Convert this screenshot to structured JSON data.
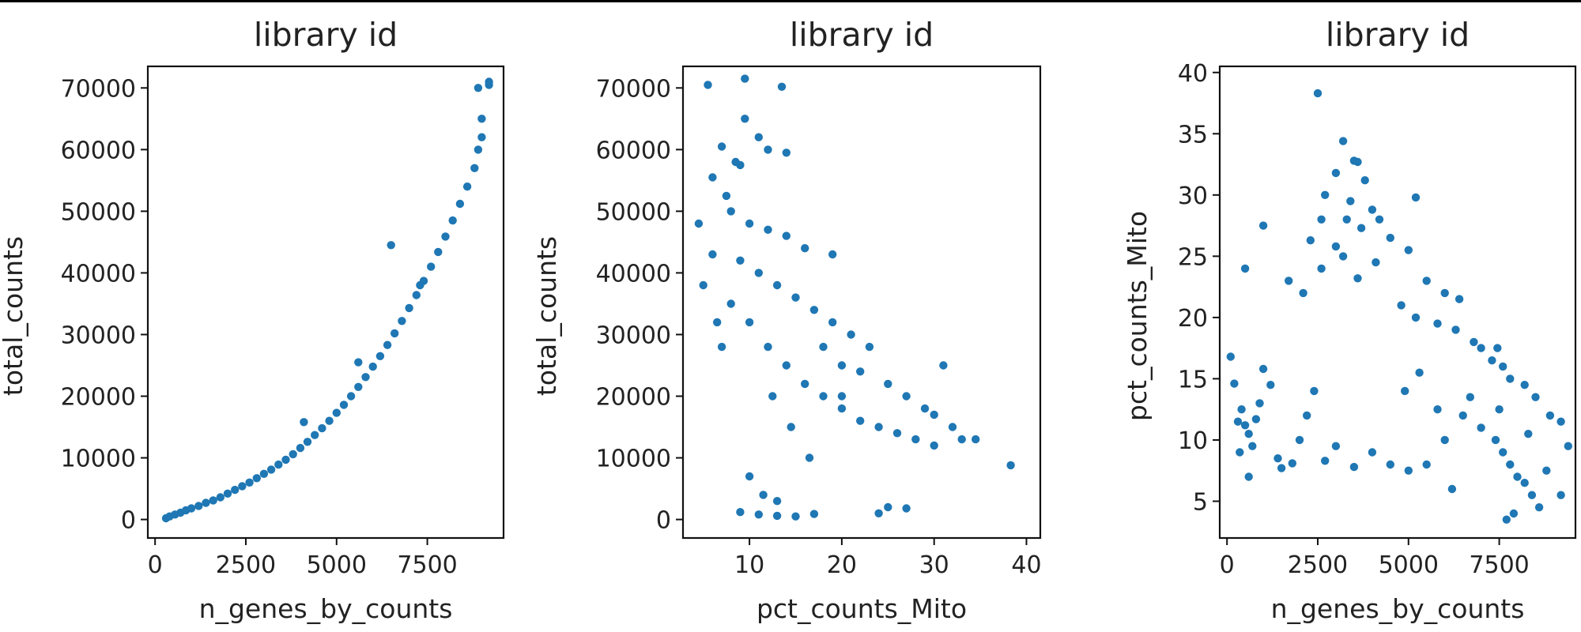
{
  "chart_data": [
    {
      "type": "scatter",
      "title": "library id",
      "xlabel": "n_genes_by_counts",
      "ylabel": "total_counts",
      "xlim": [
        -200,
        9600
      ],
      "ylim": [
        -3000,
        73500
      ],
      "xticks": [
        0,
        2500,
        5000,
        7500
      ],
      "xtick_labels": [
        "0",
        "2500",
        "5000",
        "7500"
      ],
      "yticks": [
        0,
        10000,
        20000,
        30000,
        40000,
        50000,
        60000,
        70000
      ],
      "ytick_labels": [
        "0",
        "10000",
        "20000",
        "30000",
        "40000",
        "50000",
        "60000",
        "70000"
      ],
      "color": "#1f77b4",
      "grid": false,
      "points": [
        [
          300,
          200
        ],
        [
          400,
          500
        ],
        [
          550,
          800
        ],
        [
          700,
          1100
        ],
        [
          850,
          1500
        ],
        [
          1000,
          1800
        ],
        [
          1200,
          2200
        ],
        [
          1400,
          2700
        ],
        [
          1600,
          3100
        ],
        [
          1800,
          3600
        ],
        [
          2000,
          4200
        ],
        [
          2200,
          4800
        ],
        [
          2400,
          5400
        ],
        [
          2600,
          6000
        ],
        [
          2800,
          6700
        ],
        [
          3000,
          7400
        ],
        [
          3200,
          8100
        ],
        [
          3400,
          8900
        ],
        [
          3600,
          9700
        ],
        [
          3800,
          10600
        ],
        [
          4000,
          11600
        ],
        [
          4200,
          12600
        ],
        [
          4400,
          13700
        ],
        [
          4600,
          14800
        ],
        [
          4800,
          16000
        ],
        [
          5000,
          17300
        ],
        [
          5200,
          18600
        ],
        [
          5400,
          20000
        ],
        [
          5600,
          21500
        ],
        [
          5800,
          23100
        ],
        [
          6000,
          24800
        ],
        [
          6200,
          26500
        ],
        [
          6400,
          28300
        ],
        [
          6600,
          30200
        ],
        [
          6800,
          32200
        ],
        [
          7000,
          34300
        ],
        [
          7200,
          36400
        ],
        [
          7400,
          38700
        ],
        [
          7600,
          41000
        ],
        [
          7800,
          43400
        ],
        [
          8000,
          45900
        ],
        [
          8200,
          48500
        ],
        [
          8400,
          51200
        ],
        [
          8600,
          54000
        ],
        [
          8800,
          57000
        ],
        [
          8900,
          60000
        ],
        [
          9000,
          62000
        ],
        [
          9000,
          65000
        ],
        [
          8900,
          70000
        ],
        [
          9200,
          70500
        ],
        [
          9200,
          71000
        ],
        [
          6500,
          44500
        ],
        [
          5600,
          25500
        ],
        [
          4100,
          15800
        ],
        [
          7300,
          38000
        ]
      ]
    },
    {
      "type": "scatter",
      "title": "library id",
      "xlabel": "pct_counts_Mito",
      "ylabel": "total_counts",
      "xlim": [
        2.8,
        41.5
      ],
      "ylim": [
        -3000,
        73500
      ],
      "xticks": [
        10,
        20,
        30,
        40
      ],
      "xtick_labels": [
        "10",
        "20",
        "30",
        "40"
      ],
      "yticks": [
        0,
        10000,
        20000,
        30000,
        40000,
        50000,
        60000,
        70000
      ],
      "ytick_labels": [
        "0",
        "10000",
        "20000",
        "30000",
        "40000",
        "50000",
        "60000",
        "70000"
      ],
      "color": "#1f77b4",
      "grid": false,
      "points": [
        [
          5.5,
          70500
        ],
        [
          9.5,
          71500
        ],
        [
          13.5,
          70200
        ],
        [
          9.5,
          65000
        ],
        [
          11,
          62000
        ],
        [
          12,
          60000
        ],
        [
          14,
          59500
        ],
        [
          7,
          60500
        ],
        [
          8.5,
          58000
        ],
        [
          9,
          57500
        ],
        [
          6,
          55500
        ],
        [
          7.5,
          52500
        ],
        [
          8,
          50000
        ],
        [
          10,
          48000
        ],
        [
          12,
          47000
        ],
        [
          14,
          46000
        ],
        [
          16,
          44000
        ],
        [
          9,
          42000
        ],
        [
          11,
          40000
        ],
        [
          13,
          38000
        ],
        [
          15,
          36000
        ],
        [
          17,
          34000
        ],
        [
          19,
          32000
        ],
        [
          21,
          30000
        ],
        [
          23,
          28000
        ],
        [
          8,
          35000
        ],
        [
          10,
          32000
        ],
        [
          12,
          28000
        ],
        [
          14,
          25000
        ],
        [
          16,
          22000
        ],
        [
          18,
          20000
        ],
        [
          20,
          18000
        ],
        [
          22,
          16000
        ],
        [
          24,
          15000
        ],
        [
          26,
          14000
        ],
        [
          28,
          13000
        ],
        [
          30,
          12000
        ],
        [
          32,
          15000
        ],
        [
          33,
          13000
        ],
        [
          34.5,
          13000
        ],
        [
          38.3,
          8800
        ],
        [
          25,
          2000
        ],
        [
          24,
          1000
        ],
        [
          27,
          1800
        ],
        [
          9,
          1200
        ],
        [
          11,
          800
        ],
        [
          13,
          600
        ],
        [
          15,
          500
        ],
        [
          17,
          900
        ],
        [
          6,
          43000
        ],
        [
          4.5,
          48000
        ],
        [
          5,
          38000
        ],
        [
          6.5,
          32000
        ],
        [
          7,
          28000
        ],
        [
          12.5,
          20000
        ],
        [
          14.5,
          15000
        ],
        [
          16.5,
          10000
        ],
        [
          10,
          7000
        ],
        [
          11.5,
          4000
        ],
        [
          13,
          3000
        ],
        [
          20,
          25000
        ],
        [
          22,
          24000
        ],
        [
          25,
          22000
        ],
        [
          27,
          20000
        ],
        [
          30,
          17000
        ],
        [
          31,
          25000
        ],
        [
          29,
          18000
        ],
        [
          18,
          28000
        ],
        [
          19,
          43000
        ],
        [
          20,
          20000
        ]
      ]
    },
    {
      "type": "scatter",
      "title": "library id",
      "xlabel": "n_genes_by_counts",
      "ylabel": "pct_counts_Mito",
      "xlim": [
        -200,
        9600
      ],
      "ylim": [
        2,
        40.5
      ],
      "xticks": [
        0,
        2500,
        5000,
        7500
      ],
      "xtick_labels": [
        "0",
        "2500",
        "5000",
        "7500"
      ],
      "yticks": [
        5,
        10,
        15,
        20,
        25,
        30,
        35,
        40
      ],
      "ytick_labels": [
        "5",
        "10",
        "15",
        "20",
        "25",
        "30",
        "35",
        "40"
      ],
      "color": "#1f77b4",
      "grid": false,
      "points": [
        [
          2500,
          38.3
        ],
        [
          3200,
          34.4
        ],
        [
          3500,
          32.8
        ],
        [
          3600,
          32.7
        ],
        [
          3000,
          31.8
        ],
        [
          3800,
          31.2
        ],
        [
          2700,
          30.0
        ],
        [
          5200,
          29.8
        ],
        [
          3400,
          29.5
        ],
        [
          4000,
          28.8
        ],
        [
          3300,
          28.0
        ],
        [
          4200,
          28.0
        ],
        [
          2600,
          28.0
        ],
        [
          1000,
          27.5
        ],
        [
          3700,
          27.3
        ],
        [
          4500,
          26.5
        ],
        [
          2300,
          26.3
        ],
        [
          3000,
          25.8
        ],
        [
          5000,
          25.5
        ],
        [
          3200,
          25.0
        ],
        [
          4100,
          24.5
        ],
        [
          500,
          24.0
        ],
        [
          2600,
          24.0
        ],
        [
          3600,
          23.2
        ],
        [
          1700,
          23.0
        ],
        [
          5500,
          23.0
        ],
        [
          6000,
          22.0
        ],
        [
          2100,
          22.0
        ],
        [
          4800,
          21.0
        ],
        [
          5200,
          20.0
        ],
        [
          5800,
          19.5
        ],
        [
          6300,
          19.0
        ],
        [
          6800,
          18.0
        ],
        [
          7000,
          17.5
        ],
        [
          7300,
          16.5
        ],
        [
          7600,
          16.0
        ],
        [
          7800,
          15.0
        ],
        [
          8200,
          14.5
        ],
        [
          8500,
          13.5
        ],
        [
          8900,
          12.0
        ],
        [
          9200,
          11.5
        ],
        [
          100,
          16.8
        ],
        [
          200,
          14.6
        ],
        [
          300,
          11.5
        ],
        [
          400,
          12.5
        ],
        [
          500,
          11.2
        ],
        [
          600,
          10.5
        ],
        [
          700,
          9.5
        ],
        [
          800,
          11.7
        ],
        [
          900,
          13.0
        ],
        [
          1000,
          15.8
        ],
        [
          1200,
          14.5
        ],
        [
          1400,
          8.5
        ],
        [
          1500,
          7.7
        ],
        [
          1800,
          8.1
        ],
        [
          2000,
          10.0
        ],
        [
          2200,
          12.0
        ],
        [
          2400,
          14.0
        ],
        [
          2700,
          8.3
        ],
        [
          3000,
          9.5
        ],
        [
          3500,
          7.8
        ],
        [
          4000,
          9.0
        ],
        [
          4500,
          8.0
        ],
        [
          5000,
          7.5
        ],
        [
          5500,
          8.0
        ],
        [
          6000,
          10.0
        ],
        [
          6500,
          12.0
        ],
        [
          7000,
          11.0
        ],
        [
          7400,
          10.0
        ],
        [
          7600,
          9.0
        ],
        [
          7800,
          8.0
        ],
        [
          8000,
          7.0
        ],
        [
          8200,
          6.5
        ],
        [
          8400,
          5.5
        ],
        [
          8600,
          4.5
        ],
        [
          9200,
          5.5
        ],
        [
          9400,
          9.5
        ],
        [
          7700,
          3.5
        ],
        [
          7900,
          4.0
        ],
        [
          8800,
          7.5
        ],
        [
          6200,
          6.0
        ],
        [
          5800,
          12.5
        ],
        [
          4900,
          14.0
        ],
        [
          5300,
          15.5
        ],
        [
          6700,
          13.5
        ],
        [
          7500,
          12.5
        ],
        [
          8300,
          10.5
        ],
        [
          350,
          9.0
        ],
        [
          600,
          7.0
        ],
        [
          7450,
          17.5
        ],
        [
          6400,
          21.5
        ]
      ]
    }
  ]
}
